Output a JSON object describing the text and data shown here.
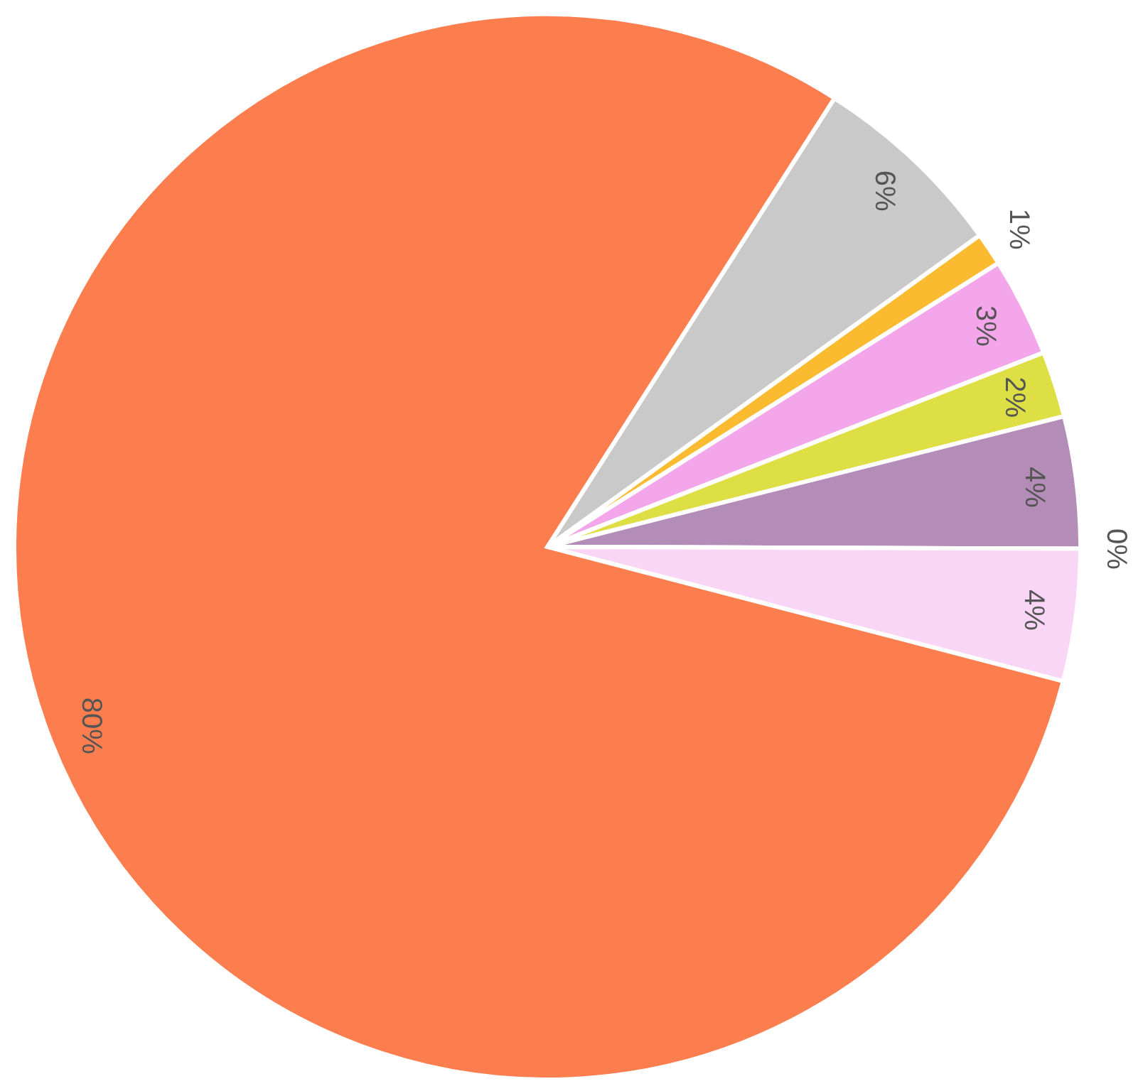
{
  "chart_data": {
    "type": "pie",
    "categories": [
      null,
      null,
      null,
      null,
      null,
      null,
      null,
      null
    ],
    "values": [
      6,
      1,
      3,
      2,
      4,
      0,
      4,
      80
    ],
    "colors": [
      "#c9c9c9",
      "#fbbb30",
      "#f3a6ea",
      "#dede45",
      "#b48cb8",
      "#b5522a",
      "#f9d6f6",
      "#fc7e4e"
    ],
    "value_labels": [
      "6%",
      "1%",
      "3%",
      "2%",
      "4%",
      "0%",
      "4%",
      "80%"
    ]
  }
}
